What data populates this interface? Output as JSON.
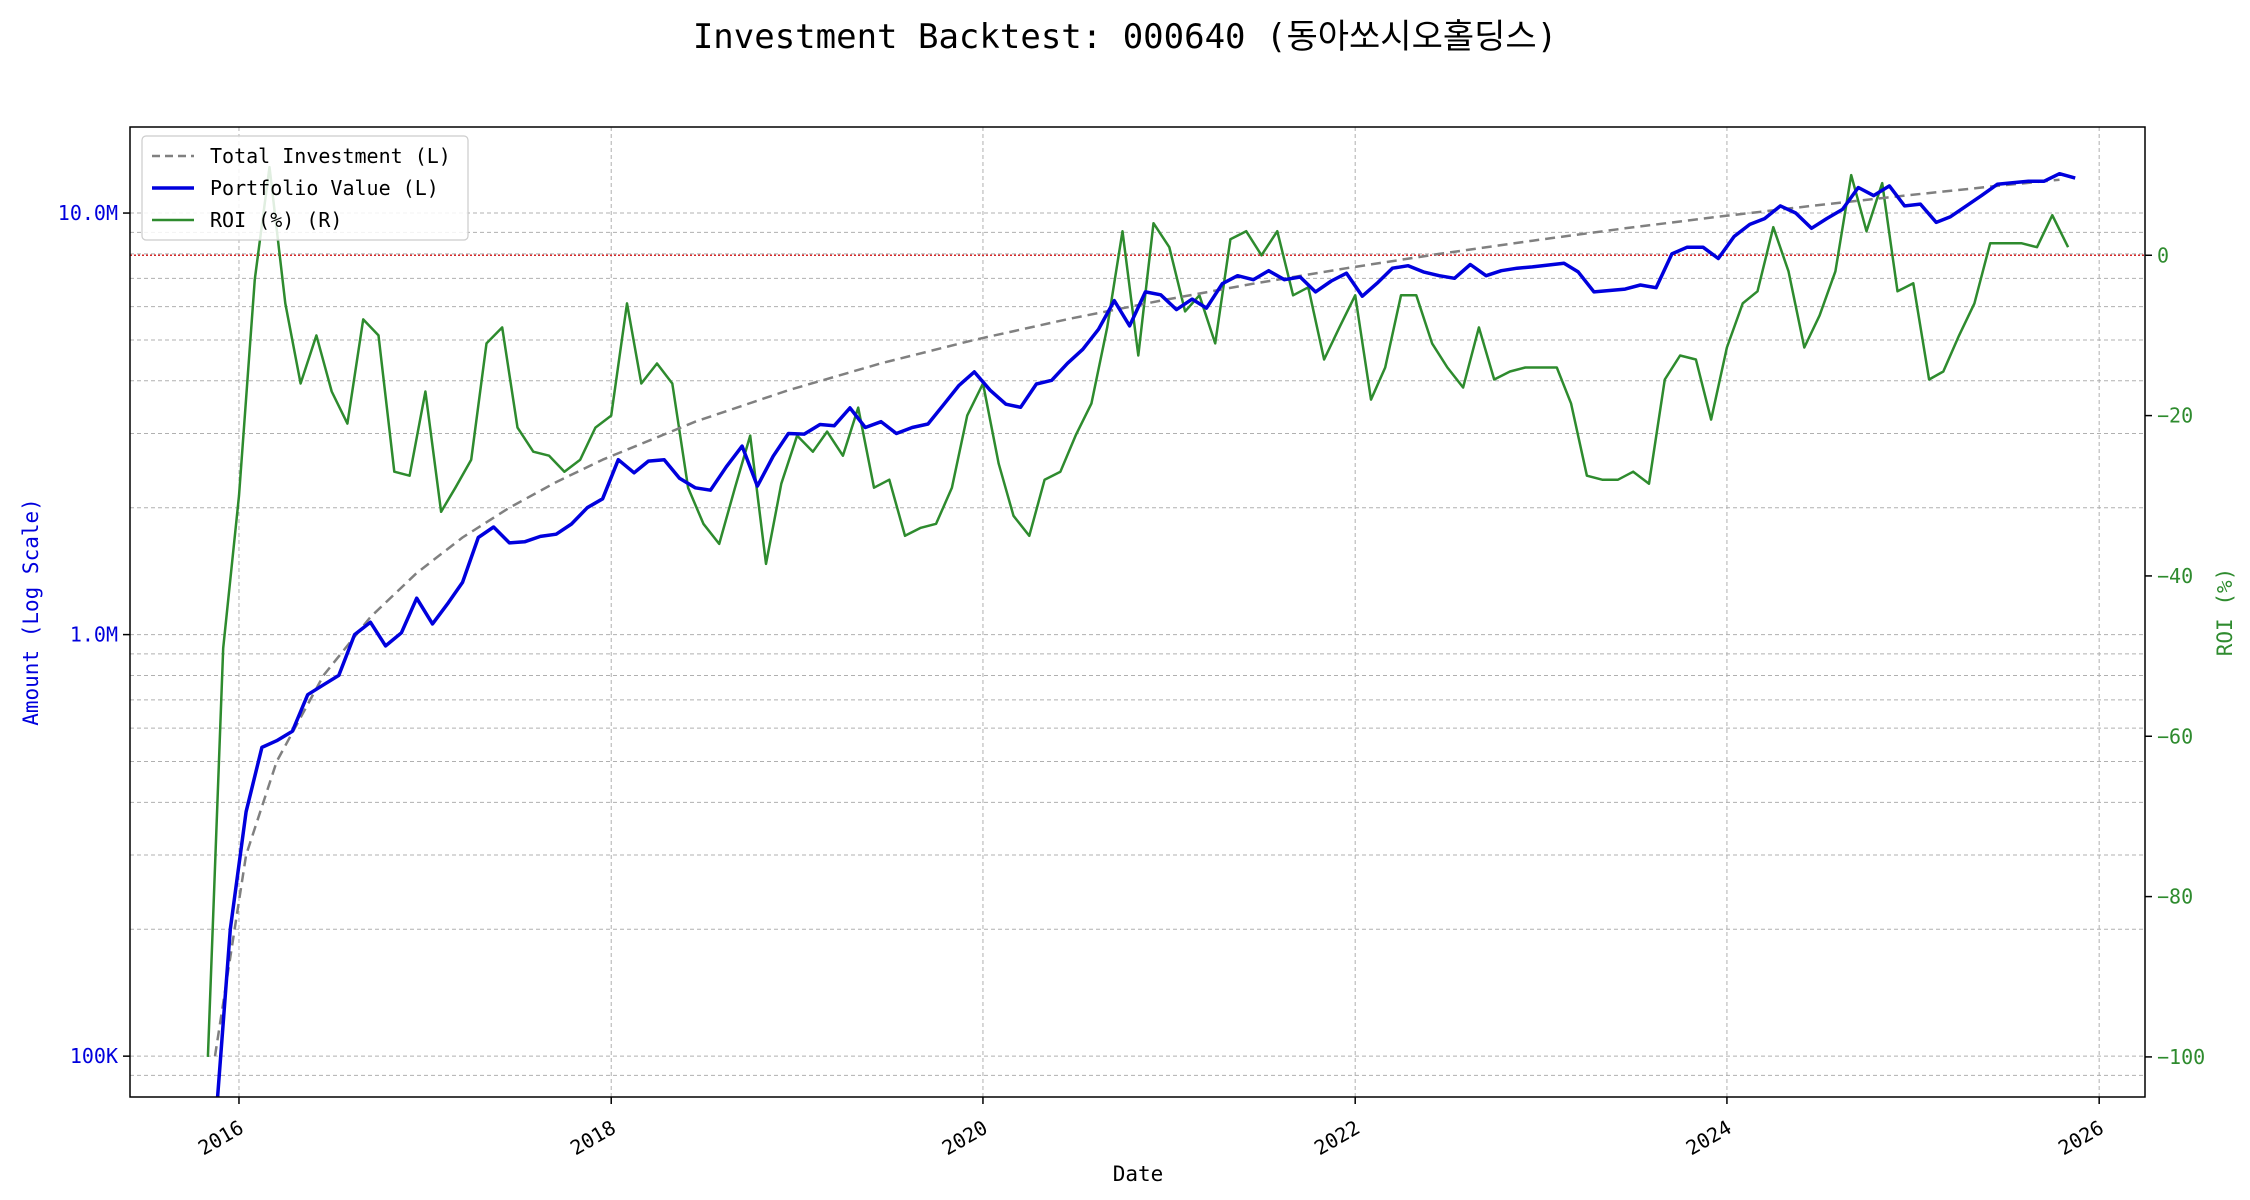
{
  "chart_data": {
    "type": "line",
    "title": "Investment Backtest: 000640 (동아쏘시오홀딩스)",
    "xlabel": "Date",
    "ylabel_left": "Amount (Log Scale)",
    "ylabel_right": "ROI (%)",
    "x_range": [
      "2015-06-01",
      "2026-04-01"
    ],
    "y_left_range": [
      80000,
      16000000
    ],
    "y_left_scale": "log",
    "y_right_range": [
      -105,
      16
    ],
    "x_ticks": [
      "2016",
      "2018",
      "2020",
      "2022",
      "2024",
      "2026"
    ],
    "y_left_ticks": [
      {
        "value": 100000,
        "label": "100K"
      },
      {
        "value": 1000000,
        "label": "1.0M"
      },
      {
        "value": 10000000,
        "label": "10.0M"
      }
    ],
    "y_right_ticks": [
      0,
      -20,
      -40,
      -60,
      -80,
      -100
    ],
    "zero_reference_line": {
      "value": 0,
      "axis": "right",
      "color": "#d62728",
      "style": "dotted"
    },
    "grid": true,
    "legend": {
      "position": "top-left",
      "entries": [
        "Total Investment (L)",
        "Portfolio Value (L)",
        "ROI (%) (R)"
      ]
    },
    "series": [
      {
        "name": "Total Investment (L)",
        "axis": "left",
        "color": "#808080",
        "style": "dashed",
        "x": [
          "2015-11-15",
          "2016-01-15",
          "2016-03-15",
          "2016-06-15",
          "2016-09-15",
          "2016-12-15",
          "2017-03-15",
          "2017-06-15",
          "2017-09-15",
          "2017-12-15",
          "2018-06-15",
          "2018-12-15",
          "2019-06-15",
          "2019-12-15",
          "2020-06-15",
          "2020-12-15",
          "2021-06-15",
          "2021-12-15",
          "2022-06-15",
          "2022-12-15",
          "2023-06-15",
          "2023-12-15",
          "2024-06-15",
          "2024-12-15",
          "2025-06-15",
          "2025-10-15"
        ],
        "y": [
          100000,
          300000,
          500000,
          800000,
          1100000,
          1400000,
          1700000,
          2000000,
          2300000,
          2600000,
          3200000,
          3800000,
          4400000,
          5000000,
          5600000,
          6200000,
          6800000,
          7400000,
          8000000,
          8600000,
          9200000,
          9800000,
          10400000,
          11000000,
          11600000,
          12000000
        ]
      },
      {
        "name": "Portfolio Value (L)",
        "axis": "left",
        "color": "#0000dd",
        "style": "solid",
        "x": [
          "2015-11-20",
          "2015-12-15",
          "2016-01-15",
          "2016-02-15",
          "2016-03-15",
          "2016-04-15",
          "2016-05-15",
          "2016-06-15",
          "2016-07-15",
          "2016-08-15",
          "2016-09-15",
          "2016-10-15",
          "2016-11-15",
          "2016-12-15",
          "2017-01-15",
          "2017-02-15",
          "2017-03-15",
          "2017-04-15",
          "2017-05-15",
          "2017-06-15",
          "2017-07-15",
          "2017-08-15",
          "2017-09-15",
          "2017-10-15",
          "2017-11-15",
          "2017-12-15",
          "2018-01-15",
          "2018-02-15",
          "2018-03-15",
          "2018-04-15",
          "2018-05-15",
          "2018-06-15",
          "2018-07-15",
          "2018-08-15",
          "2018-09-15",
          "2018-10-15",
          "2018-11-15",
          "2018-12-15",
          "2019-01-15",
          "2019-02-15",
          "2019-03-15",
          "2019-04-15",
          "2019-05-15",
          "2019-06-15",
          "2019-07-15",
          "2019-08-15",
          "2019-09-15",
          "2019-10-15",
          "2019-11-15",
          "2019-12-15",
          "2020-01-15",
          "2020-02-15",
          "2020-03-15",
          "2020-04-15",
          "2020-05-15",
          "2020-06-15",
          "2020-07-15",
          "2020-08-15",
          "2020-09-15",
          "2020-10-15",
          "2020-11-15",
          "2020-12-15",
          "2021-01-15",
          "2021-02-15",
          "2021-03-15",
          "2021-04-15",
          "2021-05-15",
          "2021-06-15",
          "2021-07-15",
          "2021-08-15",
          "2021-09-15",
          "2021-10-15",
          "2021-11-15",
          "2021-12-15",
          "2022-01-15",
          "2022-02-15",
          "2022-03-15",
          "2022-04-15",
          "2022-05-15",
          "2022-06-15",
          "2022-07-15",
          "2022-08-15",
          "2022-09-15",
          "2022-10-15",
          "2022-11-15",
          "2022-12-15",
          "2023-02-15",
          "2023-03-15",
          "2023-04-15",
          "2023-06-15",
          "2023-07-15",
          "2023-08-15",
          "2023-09-15",
          "2023-10-15",
          "2023-11-15",
          "2023-12-15",
          "2024-01-15",
          "2024-02-15",
          "2024-03-15",
          "2024-04-15",
          "2024-05-15",
          "2024-06-15",
          "2024-07-15",
          "2024-08-15",
          "2024-09-15",
          "2024-10-15",
          "2024-11-15",
          "2024-12-15",
          "2025-01-15",
          "2025-02-15",
          "2025-03-15",
          "2025-04-15",
          "2025-05-15",
          "2025-06-15",
          "2025-07-15",
          "2025-08-15",
          "2025-09-15",
          "2025-10-15",
          "2025-11-15"
        ],
        "y": [
          80000,
          200000,
          380000,
          540000,
          560000,
          590000,
          720000,
          760000,
          800000,
          1000000,
          1070000,
          940000,
          1010000,
          1220000,
          1060000,
          1190000,
          1330000,
          1700000,
          1800000,
          1650000,
          1660000,
          1710000,
          1730000,
          1830000,
          2000000,
          2100000,
          2600000,
          2420000,
          2580000,
          2600000,
          2350000,
          2230000,
          2200000,
          2500000,
          2800000,
          2250000,
          2650000,
          3000000,
          2990000,
          3150000,
          3130000,
          3450000,
          3100000,
          3200000,
          3000000,
          3100000,
          3160000,
          3500000,
          3900000,
          4200000,
          3800000,
          3520000,
          3460000,
          3930000,
          4010000,
          4400000,
          4750000,
          5300000,
          6200000,
          5400000,
          6500000,
          6400000,
          5900000,
          6250000,
          5950000,
          6800000,
          7100000,
          6950000,
          7300000,
          6950000,
          7050000,
          6500000,
          6900000,
          7200000,
          6350000,
          6850000,
          7400000,
          7500000,
          7250000,
          7100000,
          7000000,
          7550000,
          7100000,
          7300000,
          7400000,
          7450000,
          7600000,
          7250000,
          6500000,
          6600000,
          6750000,
          6650000,
          8000000,
          8300000,
          8300000,
          7800000,
          8800000,
          9400000,
          9700000,
          10400000,
          10000000,
          9200000,
          9700000,
          10200000,
          11500000,
          11000000,
          11600000,
          10400000,
          10500000,
          9500000,
          9800000,
          10400000,
          11000000,
          11700000,
          11800000,
          11900000,
          11900000,
          12400000,
          12100000
        ]
      },
      {
        "name": "ROI (%) (R)",
        "axis": "right",
        "color": "#2e8b2e",
        "style": "solid",
        "x": [
          "2015-11-01",
          "2015-12-01",
          "2016-01-01",
          "2016-02-01",
          "2016-03-01",
          "2016-04-01",
          "2016-05-01",
          "2016-06-01",
          "2016-07-01",
          "2016-08-01",
          "2016-09-01",
          "2016-10-01",
          "2016-11-01",
          "2016-12-01",
          "2017-01-01",
          "2017-02-01",
          "2017-03-01",
          "2017-04-01",
          "2017-05-01",
          "2017-06-01",
          "2017-07-01",
          "2017-08-01",
          "2017-09-01",
          "2017-10-01",
          "2017-11-01",
          "2017-12-01",
          "2018-01-01",
          "2018-02-01",
          "2018-03-01",
          "2018-04-01",
          "2018-05-01",
          "2018-06-01",
          "2018-07-01",
          "2018-08-01",
          "2018-09-01",
          "2018-10-01",
          "2018-11-01",
          "2018-12-01",
          "2019-01-01",
          "2019-02-01",
          "2019-03-01",
          "2019-04-01",
          "2019-05-01",
          "2019-06-01",
          "2019-07-01",
          "2019-08-01",
          "2019-09-01",
          "2019-10-01",
          "2019-11-01",
          "2019-12-01",
          "2020-01-01",
          "2020-02-01",
          "2020-03-01",
          "2020-04-01",
          "2020-05-01",
          "2020-06-01",
          "2020-07-01",
          "2020-08-01",
          "2020-09-01",
          "2020-10-01",
          "2020-11-01",
          "2020-12-01",
          "2021-01-01",
          "2021-02-01",
          "2021-03-01",
          "2021-04-01",
          "2021-05-01",
          "2021-06-01",
          "2021-07-01",
          "2021-08-01",
          "2021-09-01",
          "2021-10-01",
          "2021-11-01",
          "2021-12-01",
          "2022-01-01",
          "2022-02-01",
          "2022-03-01",
          "2022-04-01",
          "2022-05-01",
          "2022-06-01",
          "2022-07-01",
          "2022-08-01",
          "2022-09-01",
          "2022-10-01",
          "2022-11-01",
          "2022-12-01",
          "2023-01-01",
          "2023-02-01",
          "2023-03-01",
          "2023-04-01",
          "2023-05-01",
          "2023-06-01",
          "2023-07-01",
          "2023-08-01",
          "2023-09-01",
          "2023-10-01",
          "2023-11-01",
          "2023-12-01",
          "2024-01-01",
          "2024-02-01",
          "2024-03-01",
          "2024-04-01",
          "2024-05-01",
          "2024-06-01",
          "2024-07-01",
          "2024-08-01",
          "2024-09-01",
          "2024-10-01",
          "2024-11-01",
          "2024-12-01",
          "2025-01-01",
          "2025-02-01",
          "2025-03-01",
          "2025-04-01",
          "2025-05-01",
          "2025-06-01",
          "2025-07-01",
          "2025-08-01",
          "2025-09-01",
          "2025-10-01",
          "2025-11-01"
        ],
        "y": [
          -100,
          -49,
          -30,
          -3,
          11,
          -6,
          -16,
          -10,
          -17,
          -21,
          -8,
          -10,
          -27,
          -27.5,
          -17,
          -32,
          -29,
          -25.5,
          -11,
          -9,
          -21.5,
          -24.5,
          -25,
          -27,
          -25.5,
          -21.5,
          -20,
          -6,
          -16,
          -13.5,
          -16,
          -29,
          -33.5,
          -36,
          -29,
          -22.5,
          -38.5,
          -28.5,
          -22.5,
          -24.5,
          -22,
          -25,
          -19,
          -29,
          -28,
          -35,
          -34,
          -33.5,
          -29,
          -20,
          -16,
          -26,
          -32.5,
          -35,
          -28,
          -27,
          -22.5,
          -18.5,
          -9,
          3,
          -12.5,
          4,
          1,
          -7,
          -5,
          -11,
          2,
          3,
          0,
          3,
          -5,
          -4,
          -13,
          -9,
          -5,
          -18,
          -14,
          -5,
          -5,
          -11,
          -14,
          -16.5,
          -9,
          -15.5,
          -14.5,
          -14,
          -14,
          -14,
          -18.5,
          -27.5,
          -28,
          -28,
          -27,
          -28.5,
          -15.5,
          -12.5,
          -13,
          -20.5,
          -11.5,
          -6,
          -4.5,
          3.5,
          -2,
          -11.5,
          -7.5,
          -2,
          10,
          3,
          9,
          -4.5,
          -3.5,
          -15.5,
          -14.5,
          -10,
          -6,
          1.5,
          1.5,
          1.5,
          1,
          5,
          1
        ]
      }
    ]
  }
}
